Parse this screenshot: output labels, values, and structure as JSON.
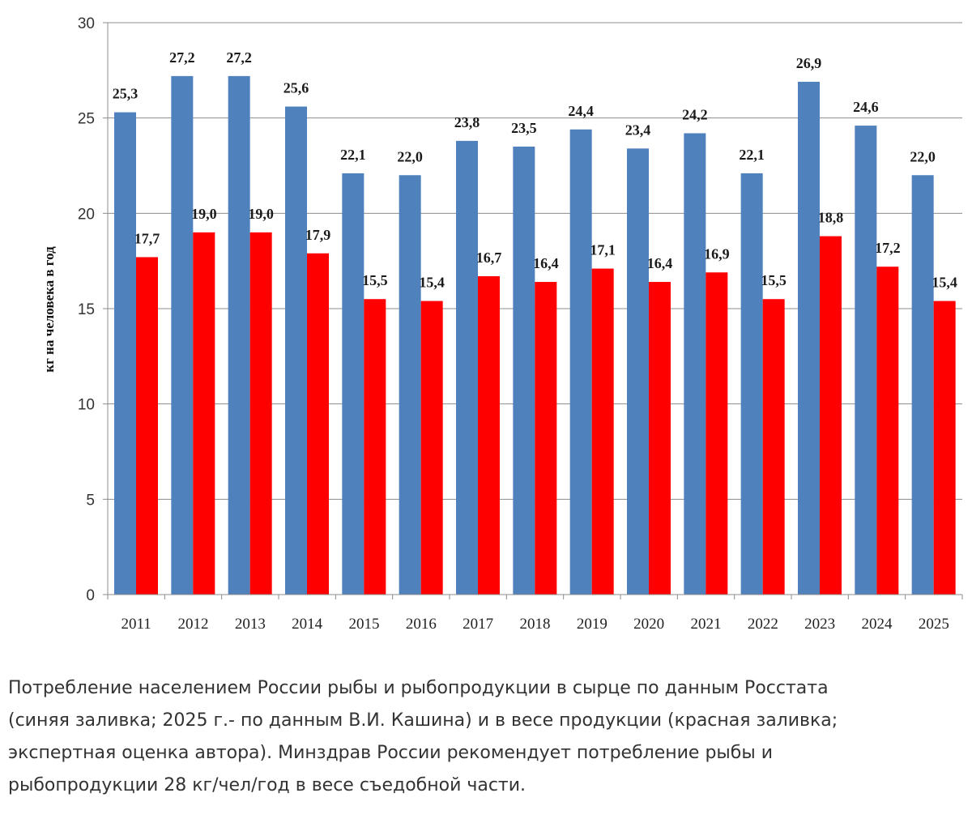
{
  "chart_data": {
    "type": "bar",
    "ylabel": "кг на человека в год",
    "ylim": [
      0,
      30
    ],
    "yticks": [
      "0",
      "5",
      "10",
      "15",
      "20",
      "25",
      "30"
    ],
    "grid": true,
    "categories": [
      "2011",
      "2012",
      "2013",
      "2014",
      "2015",
      "2016",
      "2017",
      "2018",
      "2019",
      "2020",
      "2021",
      "2022",
      "2023",
      "2024",
      "2025"
    ],
    "series": [
      {
        "name": "в сырце",
        "color": "#4F81BD",
        "values": [
          25.3,
          27.2,
          27.2,
          25.6,
          22.1,
          22.0,
          23.8,
          23.5,
          24.4,
          23.4,
          24.2,
          22.1,
          26.9,
          24.6,
          22.0
        ],
        "labels": [
          "25,3",
          "27,2",
          "27,2",
          "25,6",
          "22,1",
          "22,0",
          "23,8",
          "23,5",
          "24,4",
          "23,4",
          "24,2",
          "22,1",
          "26,9",
          "24,6",
          "22,0"
        ]
      },
      {
        "name": "в весе продукции",
        "color": "#FF0000",
        "values": [
          17.7,
          19.0,
          19.0,
          17.9,
          15.5,
          15.4,
          16.7,
          16.4,
          17.1,
          16.4,
          16.9,
          15.5,
          18.8,
          17.2,
          15.4
        ],
        "labels": [
          "17,7",
          "19,0",
          "19,0",
          "17,9",
          "15,5",
          "15,4",
          "16,7",
          "16,4",
          "17,1",
          "16,4",
          "16,9",
          "15,5",
          "18,8",
          "17,2",
          "15,4"
        ]
      }
    ]
  },
  "caption": {
    "line1": "Потребление населением России рыбы и рыбопродукции в сырце по данным Росстата",
    "line2": "(синяя заливка; 2025 г.- по данным В.И. Кашина) и в весе продукции (красная заливка;",
    "line3": "экспертная оценка автора). Минздрав России рекомендует потребление рыбы и",
    "line4": "рыбопродукции 28 кг/чел/год в весе съедобной части."
  }
}
